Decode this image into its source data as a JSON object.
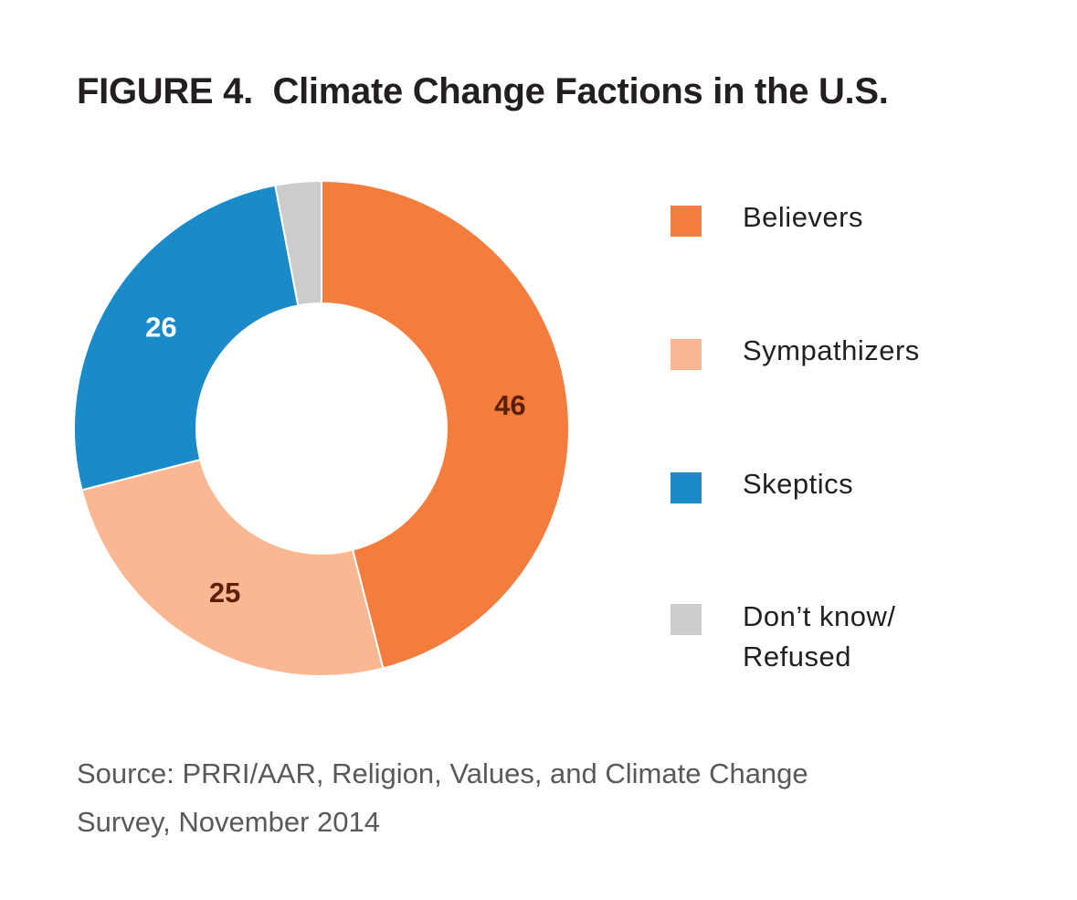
{
  "title": "FIGURE 4.  Climate Change Factions in the U.S.",
  "chart_data": {
    "type": "pie",
    "subtype": "donut",
    "title": "FIGURE 4.  Climate Change Factions in the U.S.",
    "categories": [
      "Believers",
      "Sympathizers",
      "Skeptics",
      "Don't know/Refused"
    ],
    "values": [
      46,
      25,
      26,
      3
    ],
    "data_labels": [
      "46",
      "25",
      "26",
      ""
    ],
    "colors": [
      "#F47C3C",
      "#FBB791",
      "#1A8AC9",
      "#CCCCCC"
    ],
    "label_colors": [
      "#5C1F00",
      "#5C1F00",
      "#FFFFFF",
      "#5C1F00"
    ],
    "legend_position": "right"
  },
  "legend": [
    {
      "label": "Believers"
    },
    {
      "label": "Sympathizers"
    },
    {
      "label": "Skeptics"
    },
    {
      "label_line1": "Don’t know/",
      "label_line2": "Refused"
    }
  ],
  "source": {
    "line1": "Source: PRRI/AAR, Religion, Values, and Climate Change",
    "line2": "Survey, November 2014"
  }
}
